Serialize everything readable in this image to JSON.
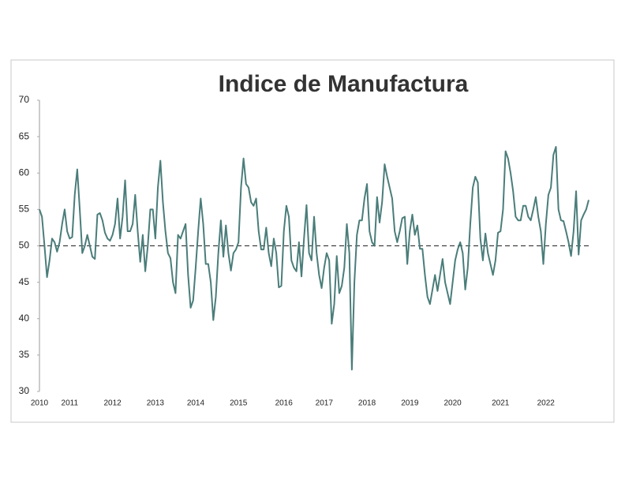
{
  "chart_data": {
    "type": "line",
    "title": "Indice de Manufactura",
    "categories": [
      "2010",
      null,
      null,
      null,
      null,
      null,
      null,
      null,
      null,
      null,
      null,
      null,
      "2011",
      null,
      null,
      null,
      null,
      null,
      null,
      null,
      null,
      null,
      null,
      null,
      null,
      null,
      null,
      null,
      null,
      "2012",
      null,
      null,
      null,
      null,
      null,
      null,
      null,
      null,
      null,
      null,
      null,
      null,
      null,
      null,
      null,
      null,
      "2013",
      null,
      null,
      null,
      null,
      null,
      null,
      null,
      null,
      null,
      null,
      null,
      null,
      null,
      null,
      null,
      "2014",
      null,
      null,
      null,
      null,
      null,
      null,
      null,
      null,
      null,
      null,
      null,
      null,
      null,
      null,
      null,
      null,
      "2015",
      null,
      null,
      null,
      null,
      null,
      null,
      null,
      null,
      null,
      null,
      null,
      null,
      null,
      null,
      null,
      null,
      null,
      "2016",
      null,
      null,
      null,
      null,
      null,
      null,
      null,
      null,
      null,
      null,
      null,
      null,
      null,
      null,
      null,
      "2017",
      null,
      null,
      null,
      null,
      null,
      null,
      null,
      null,
      null,
      null,
      null,
      null,
      null,
      null,
      null,
      null,
      "2018",
      null,
      null,
      null,
      null,
      null,
      null,
      null,
      null,
      null,
      null,
      null,
      null,
      null,
      null,
      null,
      null,
      "2019",
      null,
      null,
      null,
      null,
      null,
      null,
      null,
      null,
      null,
      null,
      null,
      null,
      null,
      null,
      null,
      null,
      "2020",
      null,
      null,
      null,
      null,
      null,
      null,
      null,
      null,
      null,
      null,
      null,
      null,
      null,
      null,
      null,
      null,
      null,
      null,
      "2021",
      null,
      null,
      null,
      null,
      null,
      null,
      null,
      null,
      null,
      null,
      null,
      null,
      null,
      null,
      null,
      null,
      null,
      "2022",
      null,
      null,
      null,
      null,
      null,
      null,
      null,
      null,
      null,
      null,
      null,
      null,
      null,
      null,
      null,
      null,
      null
    ],
    "series": [
      {
        "color": "#4a7d7a",
        "values": [
          55,
          54,
          50,
          45.7,
          48,
          51,
          50.5,
          49.2,
          50.5,
          53,
          55,
          52,
          51,
          51.2,
          57,
          60.5,
          55,
          49,
          50,
          51.5,
          50,
          48.5,
          48.2,
          54.3,
          54.5,
          53.5,
          51.8,
          51,
          50.7,
          51.5,
          53,
          56.5,
          51,
          54,
          59,
          52,
          52,
          53,
          57,
          52,
          47.8,
          51.5,
          46.5,
          50,
          55,
          55,
          51,
          58,
          61.7,
          56,
          52,
          49,
          48.3,
          45,
          43.5,
          51.5,
          51,
          52,
          53,
          46,
          41.5,
          42.5,
          47,
          52,
          56.5,
          53,
          47.5,
          47.5,
          45,
          39.8,
          43,
          49,
          53.5,
          48.5,
          52.8,
          49,
          46.6,
          49,
          49.5,
          50.5,
          58,
          62,
          58.5,
          58,
          56,
          55.5,
          56.5,
          52,
          49.5,
          49.5,
          52.5,
          49,
          47.2,
          51,
          49,
          44.3,
          44.5,
          52,
          55.5,
          54,
          48,
          47,
          46.5,
          50.5,
          45.8,
          51,
          55.6,
          49,
          48,
          54,
          49,
          46,
          44.2,
          47,
          49,
          48,
          39.3,
          42,
          48.6,
          43.5,
          44.5,
          47,
          53,
          49,
          33,
          45,
          51.5,
          53.5,
          53.5,
          56.5,
          58.5,
          52,
          50.5,
          50,
          56.7,
          53.2,
          56,
          61.2,
          59.5,
          58,
          56.5,
          52,
          50.5,
          52,
          53.8,
          54,
          47.5,
          52,
          54.3,
          51.5,
          52.8,
          49.6,
          49.6,
          46,
          43,
          42,
          44,
          46,
          43.8,
          46,
          48.2,
          45,
          43.5,
          42,
          45,
          48,
          49.5,
          50.5,
          49,
          44,
          47,
          53,
          58,
          59.5,
          58.7,
          51,
          48,
          51.7,
          49,
          47.5,
          46,
          48,
          51.8,
          52,
          55,
          63,
          62,
          60,
          57.5,
          54,
          53.5,
          53.5,
          55.5,
          55.5,
          54,
          53.5,
          55,
          56.7,
          54,
          52,
          47.5,
          53,
          57,
          58,
          62.5,
          63.6,
          55,
          53.5,
          53.4,
          52,
          50.5,
          48.6,
          52,
          57.5,
          48.8,
          53.5,
          54.3,
          55,
          56.3
        ]
      }
    ],
    "ylim": [
      30,
      70
    ],
    "yticks": [
      30,
      35,
      40,
      45,
      50,
      55,
      60,
      65,
      70
    ],
    "reference_line": 50,
    "grid": false
  }
}
